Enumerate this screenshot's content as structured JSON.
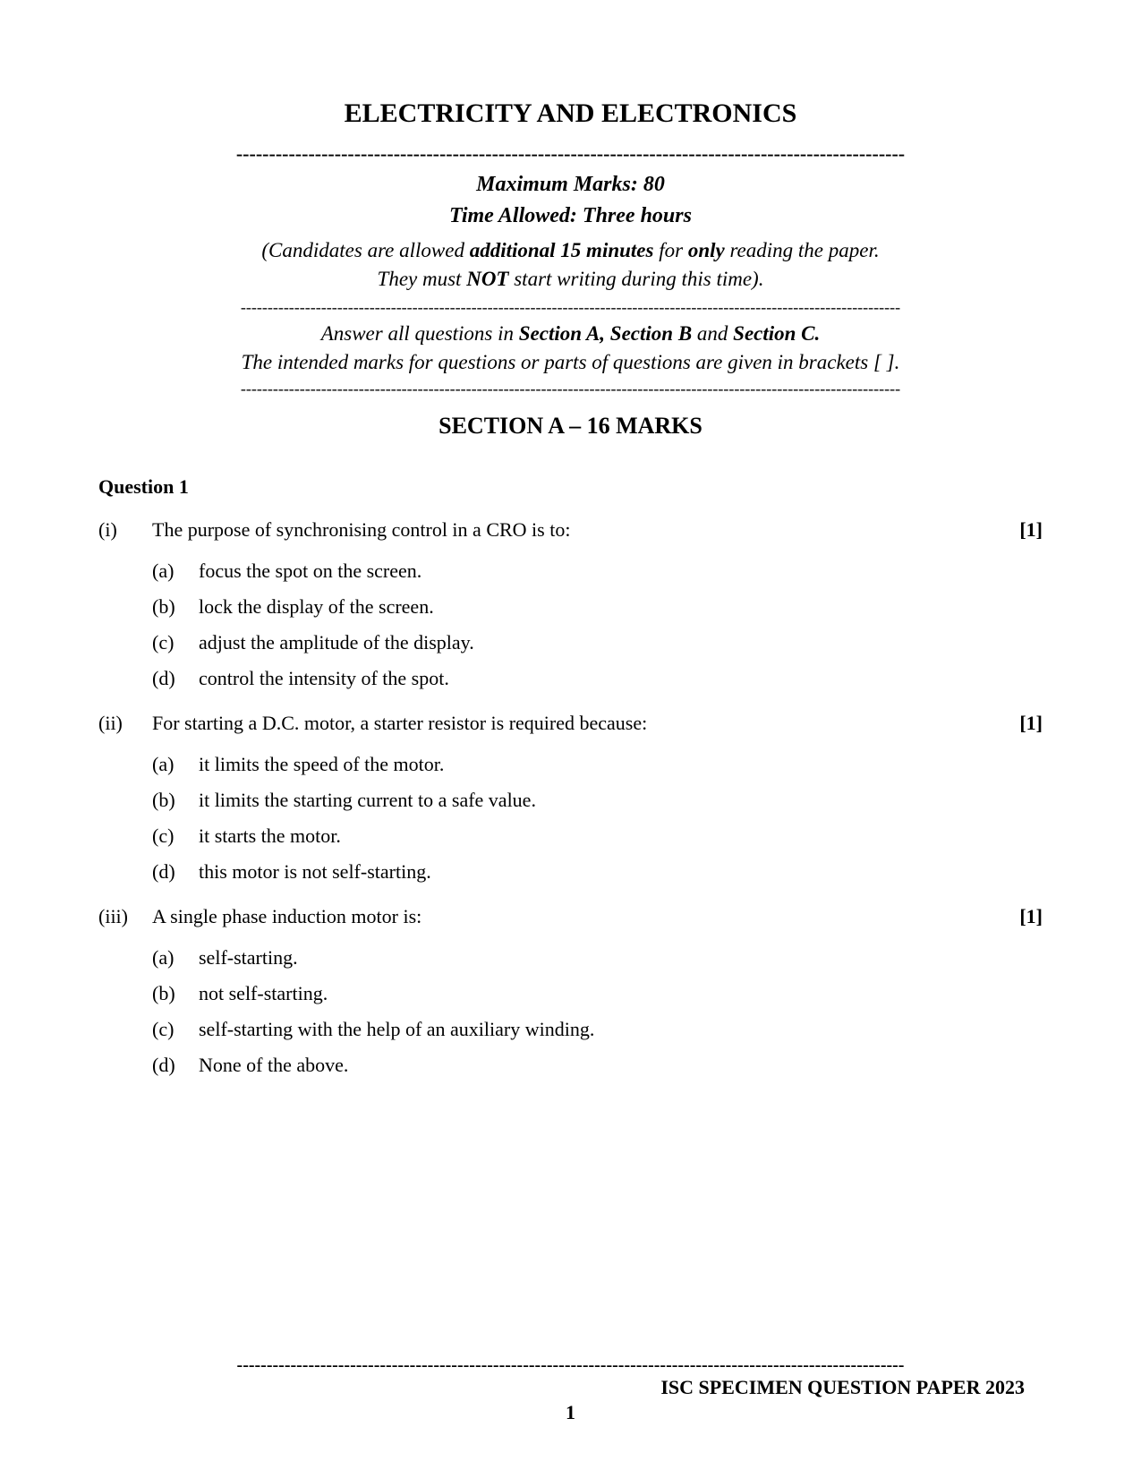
{
  "title": "ELECTRICITY AND ELECTRONICS",
  "max_marks": "Maximum Marks: 80",
  "time_allowed": "Time Allowed: Three hours",
  "instruction_line1_pre": "(Candidates are allowed ",
  "instruction_line1_bold1": "additional 15 minutes",
  "instruction_line1_mid": " for ",
  "instruction_line1_bold2": "only",
  "instruction_line1_post": " reading the paper.",
  "instruction_line2_pre": "They must ",
  "instruction_line2_bold": "NOT",
  "instruction_line2_post": " start writing during this time).",
  "answer_all_pre": "Answer all questions in ",
  "answer_all_bold1": "Section A, Section B",
  "answer_all_mid": " and ",
  "answer_all_bold2": "Section C.",
  "intended_marks": "The intended marks for questions or parts of questions are given in brackets [ ].",
  "section_header": "SECTION A – 16 MARKS",
  "question_label": "Question 1",
  "questions": [
    {
      "num": "(i)",
      "text": "The purpose of synchronising control in a CRO is to:",
      "marks": "[1]",
      "options": [
        {
          "label": "(a)",
          "text": "focus the spot on the screen."
        },
        {
          "label": "(b)",
          "text": "lock the display of the screen."
        },
        {
          "label": "(c)",
          "text": "adjust the amplitude of the display."
        },
        {
          "label": "(d)",
          "text": "control the intensity of the spot."
        }
      ]
    },
    {
      "num": "(ii)",
      "text": "For starting a D.C. motor, a starter resistor is required because:",
      "marks": "[1]",
      "options": [
        {
          "label": "(a)",
          "text": "it limits the speed of the motor."
        },
        {
          "label": "(b)",
          "text": "it limits the starting current to a safe value."
        },
        {
          "label": "(c)",
          "text": "it starts the motor."
        },
        {
          "label": "(d)",
          "text": "this motor is not self-starting."
        }
      ]
    },
    {
      "num": "(iii)",
      "text": "A single phase induction motor is:",
      "marks": "[1]",
      "options": [
        {
          "label": "(a)",
          "text": "self-starting."
        },
        {
          "label": "(b)",
          "text": "not self-starting."
        },
        {
          "label": "(c)",
          "text": "self-starting with the help of an auxiliary winding."
        },
        {
          "label": "(d)",
          "text": "None of the above."
        }
      ]
    }
  ],
  "footer_text": "ISC SPECIMEN QUESTION PAPER 2023",
  "page_number": "1",
  "thick_dash_line": "------------------------------------------------------------------------------------------------------",
  "thin_dash_line": "---------------------------------------------------------------------------------------------------------------------------",
  "footer_dash_line": "----------------------------------------------------------------------------------------------------------------"
}
